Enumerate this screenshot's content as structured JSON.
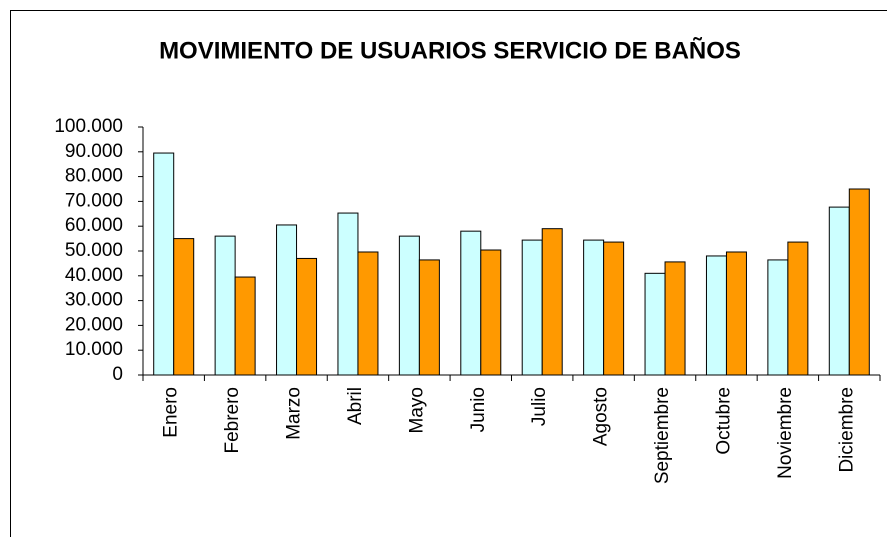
{
  "chart_data": {
    "type": "bar",
    "title": "MOVIMIENTO DE USUARIOS SERVICIO DE BAÑOS",
    "categories": [
      "Enero",
      "Febrero",
      "Marzo",
      "Abril",
      "Mayo",
      "Junio",
      "Julio",
      "Agosto",
      "Septiembre",
      "Octubre",
      "Noviembre",
      "Diciembre"
    ],
    "series": [
      {
        "color": "#ccffff",
        "values": [
          89500,
          56000,
          60500,
          65300,
          56000,
          58000,
          54400,
          54400,
          41000,
          48000,
          46400,
          67700
        ]
      },
      {
        "color": "#ff9900",
        "values": [
          55000,
          39500,
          47000,
          49600,
          46400,
          50400,
          59000,
          53600,
          45600,
          49600,
          53600,
          75000
        ]
      }
    ],
    "ylim": [
      0,
      100000
    ],
    "yticks": [
      0,
      {
        "value": 10000,
        "label": "10.000"
      },
      {
        "value": 20000,
        "label": "20.000"
      },
      {
        "value": 30000,
        "label": "30.000"
      },
      {
        "value": 40000,
        "label": "40.000"
      },
      {
        "value": 50000,
        "label": "50.000"
      },
      {
        "value": 60000,
        "label": "60.000"
      },
      {
        "value": 70000,
        "label": "70.000"
      },
      {
        "value": 80000,
        "label": "80.000"
      },
      {
        "value": 90000,
        "label": "90.000"
      },
      {
        "value": 100000,
        "label": "100.000"
      }
    ],
    "grid": false
  }
}
